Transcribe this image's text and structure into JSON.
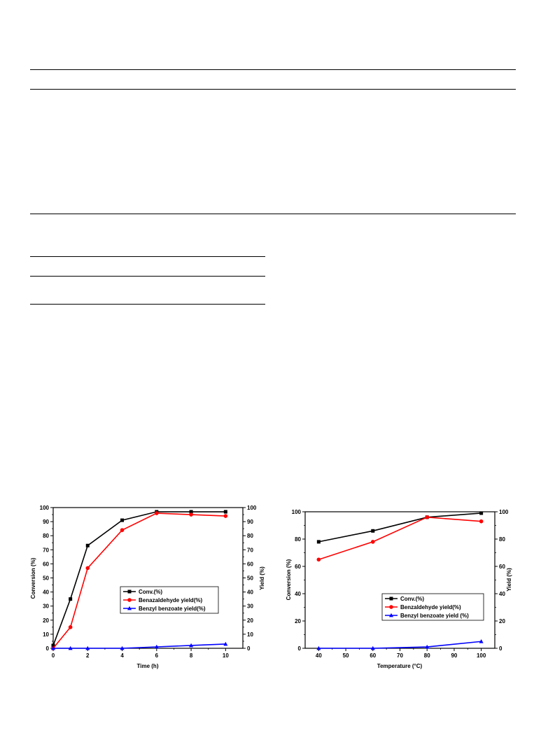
{
  "chart_data": [
    {
      "type": "line",
      "xlabel": "Time (h)",
      "ylabel": "Conversion (%)",
      "y2label": "Yield (%)",
      "xlim": [
        0,
        11
      ],
      "ylim": [
        0,
        100
      ],
      "y2lim": [
        0,
        100
      ],
      "xticks": [
        "0",
        "2",
        "4",
        "6",
        "8",
        "10"
      ],
      "yticks": [
        "0",
        "10",
        "20",
        "30",
        "40",
        "50",
        "60",
        "70",
        "80",
        "90",
        "100"
      ],
      "legend_position": "center-right",
      "series": [
        {
          "name": "Conv.(%)",
          "color": "#000000",
          "marker": "square",
          "x": [
            0,
            1,
            2,
            4,
            6,
            8,
            10
          ],
          "y": [
            2,
            35,
            73,
            91,
            97,
            97,
            97
          ]
        },
        {
          "name": "Benazaldehyde  yield(%)",
          "color": "#ff0000",
          "marker": "circle",
          "x": [
            0,
            1,
            2,
            4,
            6,
            8,
            10
          ],
          "y": [
            0,
            15,
            57,
            84,
            96,
            95,
            94
          ]
        },
        {
          "name": "Benzyl benzoate yield(%)",
          "color": "#0000ff",
          "marker": "triangle",
          "x": [
            0,
            1,
            2,
            4,
            6,
            8,
            10
          ],
          "y": [
            0,
            0,
            0,
            0,
            1,
            2,
            3
          ]
        }
      ]
    },
    {
      "type": "line",
      "xlabel": "Temperature (°C)",
      "ylabel": "Conversion (%)",
      "y2label": "Yield (%)",
      "xlim": [
        35,
        105
      ],
      "ylim": [
        0,
        100
      ],
      "y2lim": [
        0,
        100
      ],
      "xticks": [
        "40",
        "50",
        "60",
        "70",
        "80",
        "90",
        "100"
      ],
      "yticks": [
        "0",
        "20",
        "40",
        "60",
        "80",
        "100"
      ],
      "legend_position": "center-right",
      "series": [
        {
          "name": "Conv.(%)",
          "color": "#000000",
          "marker": "square",
          "x": [
            40,
            60,
            80,
            100
          ],
          "y": [
            78,
            86,
            96,
            99
          ]
        },
        {
          "name": "Benzaldehyde yield(%)",
          "color": "#ff0000",
          "marker": "circle",
          "x": [
            40,
            60,
            80,
            100
          ],
          "y": [
            65,
            78,
            96,
            93
          ]
        },
        {
          "name": "Benzyl benzoate yield (%)",
          "color": "#0000ff",
          "marker": "triangle",
          "x": [
            40,
            60,
            80,
            100
          ],
          "y": [
            0,
            0,
            1,
            5
          ]
        }
      ]
    }
  ]
}
